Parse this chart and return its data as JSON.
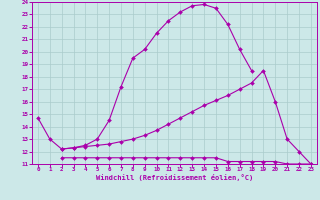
{
  "bg_color": "#cce8e8",
  "line_color": "#aa00aa",
  "grid_color": "#aacccc",
  "xlabel": "Windchill (Refroidissement éolien,°C)",
  "ylim": [
    11,
    24
  ],
  "xlim": [
    -0.5,
    23.5
  ],
  "yticks": [
    11,
    12,
    13,
    14,
    15,
    16,
    17,
    18,
    19,
    20,
    21,
    22,
    23,
    24
  ],
  "xticks": [
    0,
    1,
    2,
    3,
    4,
    5,
    6,
    7,
    8,
    9,
    10,
    11,
    12,
    13,
    14,
    15,
    16,
    17,
    18,
    19,
    20,
    21,
    22,
    23
  ],
  "line1_x": [
    0,
    1,
    2,
    3,
    4,
    5,
    6,
    7,
    8,
    9,
    10,
    11,
    12,
    13,
    14,
    15,
    16,
    17,
    18
  ],
  "line1_y": [
    14.7,
    13.0,
    12.2,
    12.3,
    12.5,
    13.0,
    14.5,
    17.2,
    19.5,
    20.2,
    21.5,
    22.5,
    23.2,
    23.7,
    23.8,
    23.5,
    22.2,
    20.2,
    18.5
  ],
  "line2_x": [
    2,
    3,
    4,
    5,
    6,
    7,
    8,
    9,
    10,
    11,
    12,
    13,
    14,
    15,
    16,
    17,
    18,
    19,
    20,
    21,
    22,
    23
  ],
  "line2_y": [
    12.2,
    12.3,
    12.4,
    12.5,
    12.6,
    12.8,
    13.0,
    13.3,
    13.7,
    14.2,
    14.7,
    15.2,
    15.7,
    16.1,
    16.5,
    17.0,
    17.5,
    18.5,
    16.0,
    13.0,
    12.0,
    11.0
  ],
  "line3_x": [
    2,
    3,
    4,
    5,
    6,
    7,
    8,
    9,
    10,
    11,
    12,
    13,
    14,
    15,
    16,
    17,
    18,
    19,
    20,
    21,
    22,
    23
  ],
  "line3_y": [
    11.5,
    11.5,
    11.5,
    11.5,
    11.5,
    11.5,
    11.5,
    11.5,
    11.5,
    11.5,
    11.5,
    11.5,
    11.5,
    11.5,
    11.2,
    11.2,
    11.2,
    11.2,
    11.2,
    11.0,
    11.0,
    11.0
  ]
}
